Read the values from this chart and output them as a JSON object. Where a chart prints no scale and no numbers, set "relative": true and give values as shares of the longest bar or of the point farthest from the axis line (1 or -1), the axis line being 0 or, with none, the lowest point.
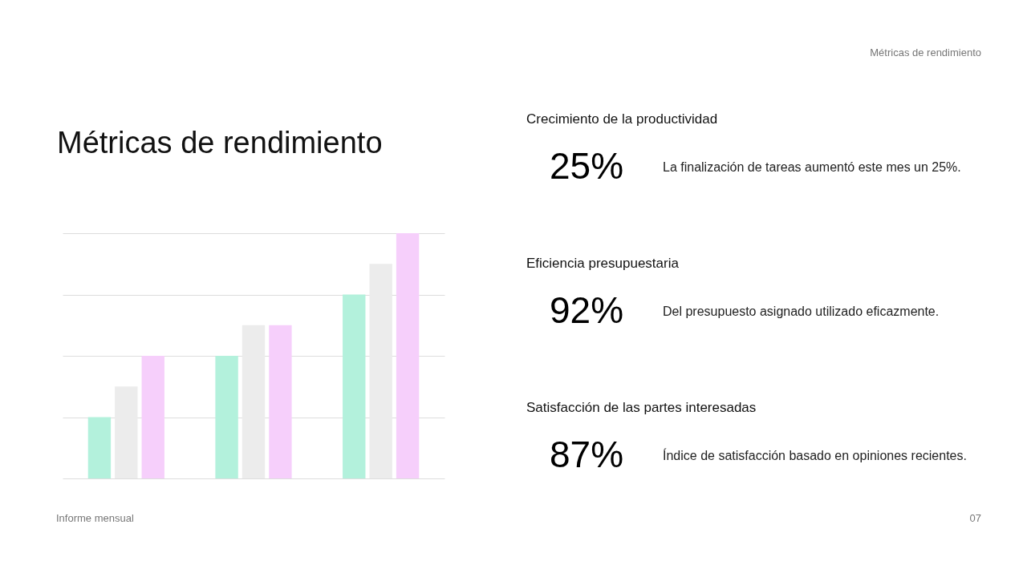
{
  "chart_data": [
    {
      "type": "bar",
      "title": "Métricas de rendimiento",
      "relative": true,
      "grid": "y",
      "categories": [
        null,
        null,
        null
      ],
      "series": [
        {
          "color": "#b3f1dc",
          "values": [
            0.25,
            0.5,
            0.75
          ]
        },
        {
          "color": "#ececec",
          "values": [
            0.375,
            0.625,
            0.875
          ]
        },
        {
          "color": "#f6cffb",
          "values": [
            0.5,
            0.625,
            1
          ]
        }
      ],
      "annotations": [
        "Informe mensual"
      ]
    },
    {
      "type": "other",
      "annotations": [
        "Crecimiento de la productividad",
        "25%",
        "La finalización de tareas aumentó este mes un 25%.",
        "Eficiencia presupuestaria",
        "92%",
        "Del presupuesto asignado utilizado eficazmente.",
        "Satisfacción de las partes interesadas",
        "87%",
        "Índice de satisfacción basado en opiniones recientes.",
        "Métricas de rendimiento",
        "07"
      ]
    }
  ]
}
